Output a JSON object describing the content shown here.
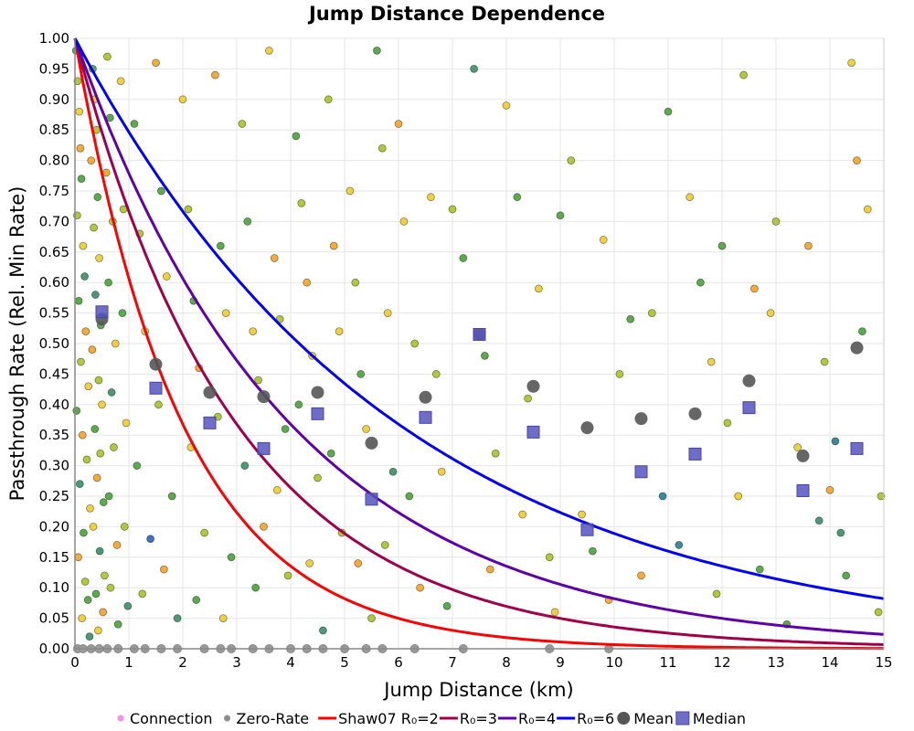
{
  "chart_data": {
    "type": "scatter",
    "title": "Jump Distance Dependence",
    "xlabel": "Jump Distance (km)",
    "ylabel": "Passthrough Rate (Rel. Min Rate)",
    "xlim": [
      0,
      15
    ],
    "ylim": [
      0,
      1
    ],
    "xticks": [
      "0",
      "1",
      "2",
      "3",
      "4",
      "5",
      "6",
      "7",
      "8",
      "9",
      "10",
      "11",
      "12",
      "13",
      "14",
      "15"
    ],
    "yticks": [
      "0.00",
      "0.05",
      "0.10",
      "0.15",
      "0.20",
      "0.25",
      "0.30",
      "0.35",
      "0.40",
      "0.45",
      "0.50",
      "0.55",
      "0.60",
      "0.65",
      "0.70",
      "0.75",
      "0.80",
      "0.85",
      "0.90",
      "0.95",
      "1.00"
    ],
    "grid": true,
    "legend_position": "bottom",
    "legend": [
      {
        "label": "Connection",
        "kind": "dot",
        "color": "#f58cf0"
      },
      {
        "label": "Zero-Rate",
        "kind": "dot",
        "color": "#8c8c8c"
      },
      {
        "label": "Shaw07 R₀=2",
        "kind": "line",
        "color": "#ff0000"
      },
      {
        "label": "R₀=3",
        "kind": "line",
        "color": "#a0004a"
      },
      {
        "label": "R₀=4",
        "kind": "line",
        "color": "#6000a8"
      },
      {
        "label": "R₀=6",
        "kind": "line",
        "color": "#0000ff"
      },
      {
        "label": "Mean",
        "kind": "circle",
        "color": "#555555"
      },
      {
        "label": "Median",
        "kind": "square",
        "color": "#5555c0"
      }
    ],
    "point_colors": [
      "#5aab4a",
      "#4a9a78",
      "#b0c83a",
      "#f0d040",
      "#f5aa3a",
      "#3a8aa0",
      "#3a70d0"
    ],
    "curves": [
      {
        "name": "Shaw07 R₀=2",
        "R0": 2,
        "color": "#ff0000",
        "formula": "exp(-d/R0)"
      },
      {
        "name": "R₀=3",
        "R0": 3,
        "color": "#a0004a",
        "formula": "exp(-d/R0)"
      },
      {
        "name": "R₀=4",
        "R0": 4,
        "color": "#6000a8",
        "formula": "exp(-d/R0)"
      },
      {
        "name": "R₀=6",
        "R0": 6,
        "color": "#0000ff",
        "formula": "exp(-d/R0)"
      }
    ],
    "bin_centers": [
      0.5,
      1.5,
      2.5,
      3.5,
      4.5,
      5.5,
      6.5,
      7.5,
      8.5,
      9.5,
      10.5,
      11.5,
      12.5,
      13.5,
      14.5
    ],
    "mean": [
      0.54,
      0.466,
      0.42,
      0.413,
      0.42,
      0.337,
      0.412,
      0.515,
      0.43,
      0.362,
      0.377,
      0.385,
      0.439,
      0.316,
      0.493
    ],
    "median": [
      0.552,
      0.427,
      0.37,
      0.328,
      0.385,
      0.245,
      0.379,
      0.515,
      0.355,
      0.195,
      0.29,
      0.319,
      0.395,
      0.259,
      0.328
    ],
    "zero_rate_x": [
      0.05,
      0.15,
      0.3,
      0.45,
      0.6,
      0.8,
      1.1,
      1.3,
      1.6,
      1.9,
      2.4,
      2.7,
      2.9,
      3.3,
      3.6,
      4.0,
      4.3,
      4.6,
      5.0,
      5.4,
      5.7,
      6.3,
      7.2,
      8.8,
      9.9
    ],
    "points": [
      [
        0.02,
        0.98,
        0
      ],
      [
        0.05,
        0.93,
        2
      ],
      [
        0.08,
        0.88,
        3
      ],
      [
        0.1,
        0.82,
        4
      ],
      [
        0.12,
        0.77,
        0
      ],
      [
        0.04,
        0.71,
        2
      ],
      [
        0.15,
        0.66,
        3
      ],
      [
        0.18,
        0.61,
        1
      ],
      [
        0.07,
        0.57,
        0
      ],
      [
        0.2,
        0.52,
        4
      ],
      [
        0.11,
        0.47,
        2
      ],
      [
        0.25,
        0.43,
        3
      ],
      [
        0.03,
        0.39,
        0
      ],
      [
        0.14,
        0.35,
        4
      ],
      [
        0.22,
        0.31,
        2
      ],
      [
        0.09,
        0.27,
        1
      ],
      [
        0.28,
        0.23,
        3
      ],
      [
        0.16,
        0.19,
        0
      ],
      [
        0.06,
        0.15,
        4
      ],
      [
        0.19,
        0.11,
        2
      ],
      [
        0.24,
        0.08,
        0
      ],
      [
        0.13,
        0.05,
        3
      ],
      [
        0.27,
        0.02,
        1
      ],
      [
        0.33,
        0.95,
        0
      ],
      [
        0.36,
        0.9,
        3
      ],
      [
        0.4,
        0.85,
        2
      ],
      [
        0.3,
        0.8,
        4
      ],
      [
        0.42,
        0.74,
        0
      ],
      [
        0.35,
        0.69,
        2
      ],
      [
        0.45,
        0.64,
        3
      ],
      [
        0.38,
        0.58,
        1
      ],
      [
        0.48,
        0.53,
        0
      ],
      [
        0.32,
        0.49,
        4
      ],
      [
        0.44,
        0.44,
        2
      ],
      [
        0.5,
        0.4,
        3
      ],
      [
        0.37,
        0.36,
        0
      ],
      [
        0.47,
        0.32,
        2
      ],
      [
        0.41,
        0.28,
        4
      ],
      [
        0.53,
        0.24,
        0
      ],
      [
        0.34,
        0.2,
        3
      ],
      [
        0.46,
        0.16,
        1
      ],
      [
        0.55,
        0.12,
        2
      ],
      [
        0.39,
        0.09,
        0
      ],
      [
        0.52,
        0.06,
        4
      ],
      [
        0.43,
        0.03,
        3
      ],
      [
        0.6,
        0.97,
        2
      ],
      [
        0.65,
        0.87,
        0
      ],
      [
        0.58,
        0.78,
        4
      ],
      [
        0.7,
        0.7,
        2
      ],
      [
        0.62,
        0.6,
        0
      ],
      [
        0.75,
        0.5,
        3
      ],
      [
        0.68,
        0.42,
        1
      ],
      [
        0.72,
        0.33,
        2
      ],
      [
        0.63,
        0.25,
        0
      ],
      [
        0.78,
        0.17,
        4
      ],
      [
        0.66,
        0.1,
        2
      ],
      [
        0.8,
        0.04,
        0
      ],
      [
        0.85,
        0.93,
        3
      ],
      [
        0.9,
        0.72,
        2
      ],
      [
        0.88,
        0.55,
        0
      ],
      [
        0.95,
        0.37,
        3
      ],
      [
        0.92,
        0.2,
        2
      ],
      [
        0.98,
        0.07,
        1
      ],
      [
        1.1,
        0.86,
        0
      ],
      [
        1.2,
        0.68,
        2
      ],
      [
        1.3,
        0.52,
        3
      ],
      [
        1.15,
        0.3,
        0
      ],
      [
        1.4,
        0.18,
        6
      ],
      [
        1.25,
        0.09,
        2
      ],
      [
        1.5,
        0.96,
        4
      ],
      [
        1.6,
        0.75,
        0
      ],
      [
        1.7,
        0.61,
        3
      ],
      [
        1.55,
        0.4,
        2
      ],
      [
        1.8,
        0.25,
        0
      ],
      [
        1.65,
        0.13,
        4
      ],
      [
        1.9,
        0.05,
        1
      ],
      [
        2.0,
        0.9,
        3
      ],
      [
        2.1,
        0.72,
        2
      ],
      [
        2.2,
        0.57,
        0
      ],
      [
        2.3,
        0.46,
        4
      ],
      [
        2.15,
        0.33,
        3
      ],
      [
        2.4,
        0.19,
        2
      ],
      [
        2.25,
        0.08,
        0
      ],
      [
        2.6,
        0.94,
        4
      ],
      [
        2.7,
        0.66,
        0
      ],
      [
        2.8,
        0.55,
        3
      ],
      [
        2.65,
        0.38,
        2
      ],
      [
        2.9,
        0.15,
        0
      ],
      [
        2.75,
        0.05,
        3
      ],
      [
        3.1,
        0.86,
        2
      ],
      [
        3.2,
        0.7,
        0
      ],
      [
        3.3,
        0.52,
        3
      ],
      [
        3.4,
        0.44,
        2
      ],
      [
        3.15,
        0.3,
        1
      ],
      [
        3.5,
        0.2,
        4
      ],
      [
        3.35,
        0.1,
        0
      ],
      [
        3.6,
        0.98,
        3
      ],
      [
        3.7,
        0.64,
        4
      ],
      [
        3.8,
        0.54,
        2
      ],
      [
        3.9,
        0.36,
        0
      ],
      [
        3.75,
        0.26,
        3
      ],
      [
        3.95,
        0.12,
        2
      ],
      [
        4.1,
        0.84,
        0
      ],
      [
        4.2,
        0.73,
        2
      ],
      [
        4.3,
        0.6,
        4
      ],
      [
        4.4,
        0.48,
        3
      ],
      [
        4.15,
        0.4,
        0
      ],
      [
        4.5,
        0.28,
        2
      ],
      [
        4.35,
        0.14,
        3
      ],
      [
        4.6,
        0.03,
        1
      ],
      [
        4.7,
        0.9,
        2
      ],
      [
        4.8,
        0.66,
        4
      ],
      [
        4.9,
        0.52,
        3
      ],
      [
        4.75,
        0.32,
        0
      ],
      [
        4.95,
        0.19,
        2
      ],
      [
        5.1,
        0.75,
        3
      ],
      [
        5.2,
        0.6,
        2
      ],
      [
        5.3,
        0.45,
        0
      ],
      [
        5.4,
        0.36,
        3
      ],
      [
        5.25,
        0.14,
        4
      ],
      [
        5.5,
        0.05,
        2
      ],
      [
        5.6,
        0.98,
        0
      ],
      [
        5.7,
        0.82,
        2
      ],
      [
        5.8,
        0.55,
        3
      ],
      [
        5.9,
        0.29,
        1
      ],
      [
        5.75,
        0.17,
        2
      ],
      [
        6.0,
        0.86,
        4
      ],
      [
        6.1,
        0.7,
        3
      ],
      [
        6.3,
        0.5,
        2
      ],
      [
        6.2,
        0.25,
        0
      ],
      [
        6.4,
        0.1,
        4
      ],
      [
        6.6,
        0.74,
        3
      ],
      [
        6.7,
        0.45,
        2
      ],
      [
        6.8,
        0.29,
        3
      ],
      [
        6.9,
        0.07,
        0
      ],
      [
        7.0,
        0.72,
        2
      ],
      [
        7.2,
        0.64,
        0
      ],
      [
        7.4,
        0.95,
        1
      ],
      [
        7.6,
        0.48,
        0
      ],
      [
        7.8,
        0.32,
        2
      ],
      [
        7.7,
        0.13,
        4
      ],
      [
        8.0,
        0.89,
        3
      ],
      [
        8.2,
        0.74,
        0
      ],
      [
        8.4,
        0.41,
        2
      ],
      [
        8.3,
        0.22,
        3
      ],
      [
        8.6,
        0.59,
        3
      ],
      [
        8.8,
        0.15,
        2
      ],
      [
        8.9,
        0.06,
        3
      ],
      [
        9.0,
        0.71,
        0
      ],
      [
        9.2,
        0.8,
        2
      ],
      [
        9.4,
        0.22,
        3
      ],
      [
        9.6,
        0.16,
        0
      ],
      [
        9.8,
        0.67,
        3
      ],
      [
        9.9,
        0.08,
        4
      ],
      [
        10.1,
        0.45,
        2
      ],
      [
        10.3,
        0.54,
        0
      ],
      [
        10.5,
        0.12,
        4
      ],
      [
        10.7,
        0.55,
        2
      ],
      [
        10.9,
        0.25,
        5
      ],
      [
        11.0,
        0.88,
        0
      ],
      [
        11.2,
        0.17,
        5
      ],
      [
        11.4,
        0.74,
        3
      ],
      [
        11.6,
        0.6,
        0
      ],
      [
        11.8,
        0.47,
        3
      ],
      [
        11.9,
        0.09,
        2
      ],
      [
        12.0,
        0.66,
        0
      ],
      [
        12.1,
        0.37,
        2
      ],
      [
        12.3,
        0.25,
        3
      ],
      [
        12.4,
        0.94,
        2
      ],
      [
        12.6,
        0.59,
        4
      ],
      [
        12.7,
        0.13,
        0
      ],
      [
        12.9,
        0.55,
        3
      ],
      [
        13.0,
        0.7,
        2
      ],
      [
        13.2,
        0.04,
        0
      ],
      [
        13.4,
        0.33,
        3
      ],
      [
        13.6,
        0.66,
        4
      ],
      [
        13.8,
        0.21,
        1
      ],
      [
        13.9,
        0.47,
        2
      ],
      [
        14.0,
        0.26,
        4
      ],
      [
        14.1,
        0.34,
        5
      ],
      [
        14.2,
        0.19,
        1
      ],
      [
        14.3,
        0.12,
        0
      ],
      [
        14.4,
        0.96,
        3
      ],
      [
        14.5,
        0.8,
        4
      ],
      [
        14.6,
        0.52,
        0
      ],
      [
        14.7,
        0.72,
        3
      ],
      [
        14.9,
        0.06,
        2
      ],
      [
        14.95,
        0.25,
        2
      ]
    ]
  }
}
